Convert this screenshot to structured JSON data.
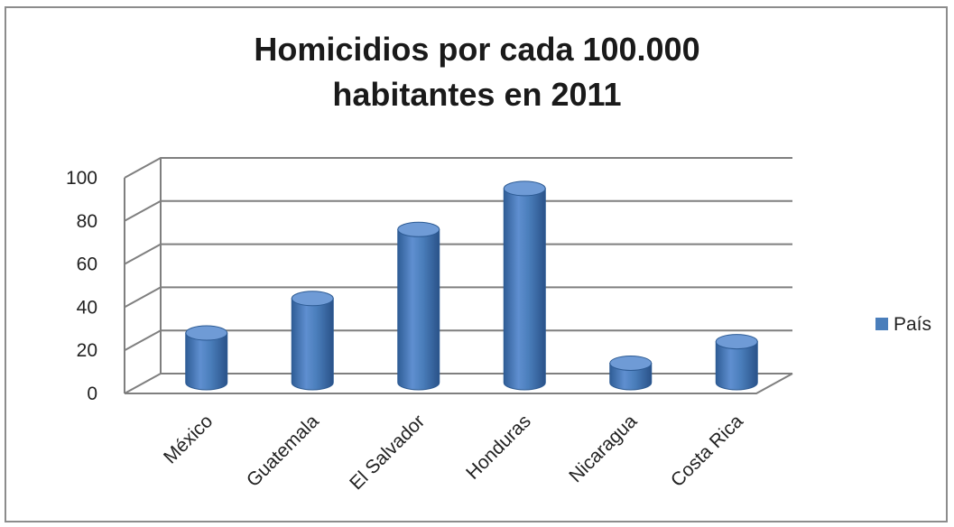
{
  "chart_data": {
    "type": "bar",
    "title_line1": "Homicidios por cada 100.000",
    "title_line2": "habitantes en 2011",
    "categories": [
      "México",
      "Guatemala",
      "El Salvador",
      "Honduras",
      "Nicaragua",
      "Costa Rica"
    ],
    "series": [
      {
        "name": "País",
        "values": [
          23,
          39,
          71,
          90,
          9,
          19
        ]
      }
    ],
    "ylim": [
      0,
      100
    ],
    "yticks": [
      0,
      20,
      40,
      60,
      80,
      100
    ],
    "grid": true,
    "legend": "right",
    "colors": {
      "bar": "#4a7ebb",
      "bar_dark": "#2c5a93",
      "bar_light": "#6f9bd6",
      "grid": "#7f7f7f"
    }
  }
}
